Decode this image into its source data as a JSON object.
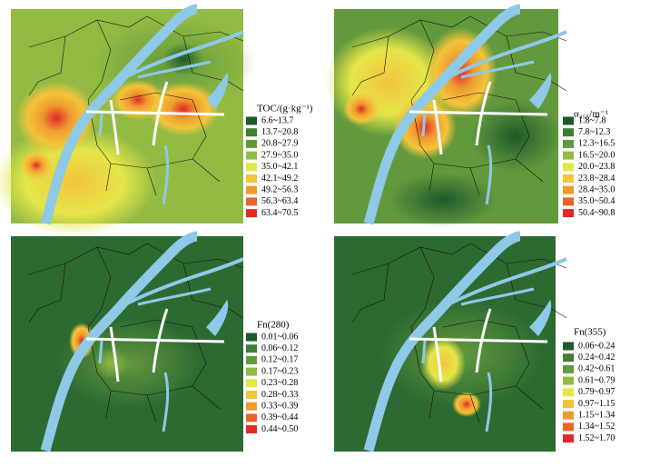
{
  "colors": [
    "#1e5a2a",
    "#3f7d36",
    "#62993d",
    "#93bb43",
    "#e4e64a",
    "#f4c43a",
    "#ef9a2f",
    "#e8652b",
    "#e02a27"
  ],
  "panels": [
    {
      "legend_title": "TOC/(g·kg⁻¹)",
      "classes": [
        "6.6~13.7",
        "13.7~20.8",
        "20.8~27.9",
        "27.9~35.0",
        "35.0~42.1",
        "42.1~49.2",
        "49.2~56.3",
        "56.3~63.4",
        "63.4~70.5"
      ]
    },
    {
      "legend_title": "α₃₅₅/m⁻¹",
      "classes": [
        "1.8~7.8",
        "7.8~12.3",
        "12.3~16.5",
        "16.5~20.0",
        "20.0~23.8",
        "23.8~28.4",
        "28.4~35.0",
        "35.0~50.4",
        "50.4~90.8"
      ]
    },
    {
      "legend_title": "Fn(280)",
      "classes": [
        "0.01~0.06",
        "0.06~0.12",
        "0.12~0.17",
        "0.17~0.23",
        "0.23~0.28",
        "0.28~0.33",
        "0.33~0.39",
        "0.39~0.44",
        "0.44~0.50"
      ]
    },
    {
      "legend_title": "Fn(355)",
      "classes": [
        "0.06~0.24",
        "0.24~0.42",
        "0.42~0.61",
        "0.61~0.79",
        "0.79~0.97",
        "0.97~1.15",
        "1.15~1.34",
        "1.34~1.52",
        "1.52~1.70"
      ]
    }
  ]
}
